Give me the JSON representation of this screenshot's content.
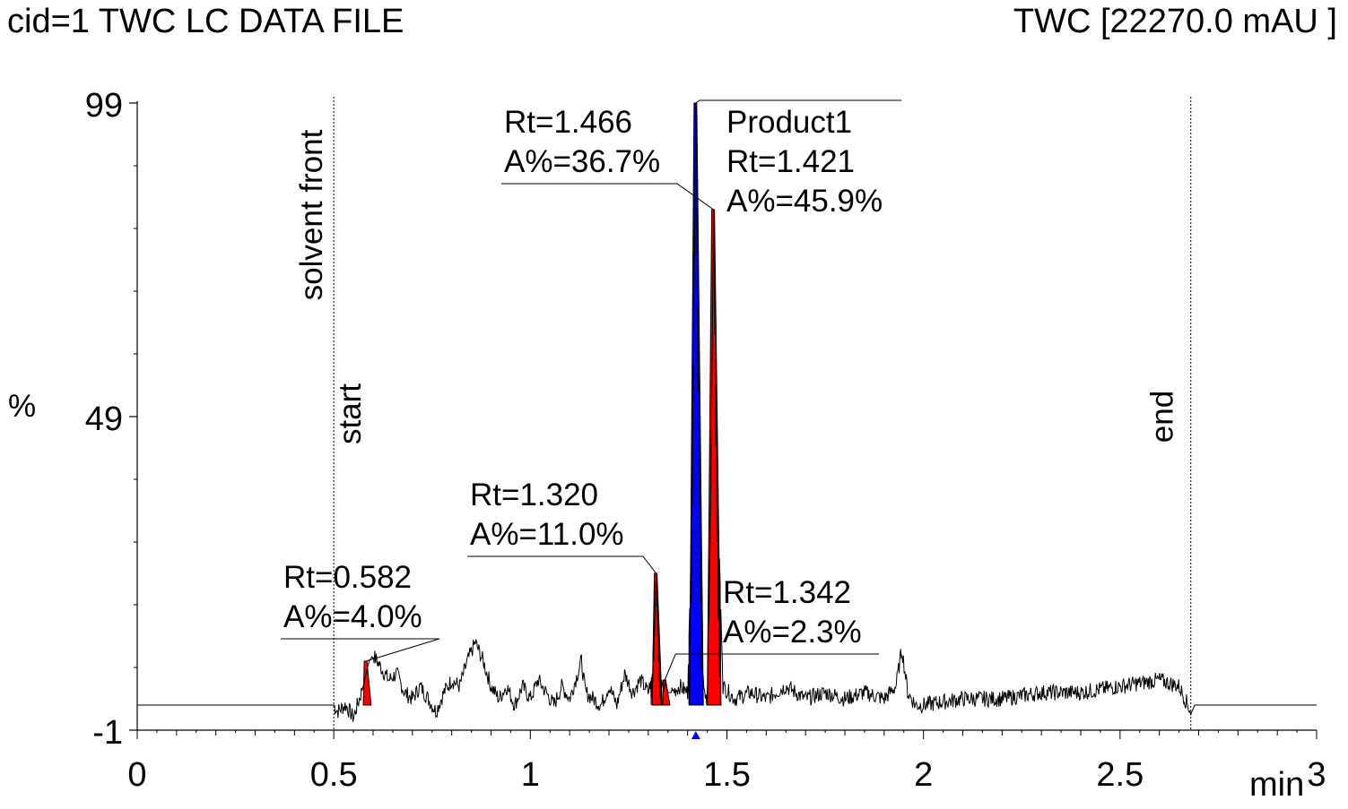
{
  "header": {
    "title_left": "cid=1 TWC LC DATA FILE",
    "title_right": "TWC [22270.0 mAU ]"
  },
  "chart_data": {
    "type": "line",
    "title": "cid=1 TWC LC DATA FILE",
    "detector": "TWC [22270.0 mAU ]",
    "xlabel": "min",
    "ylabel": "%",
    "xlim": [
      0,
      3
    ],
    "ylim": [
      -1,
      99
    ],
    "x_ticks": [
      0,
      0.5,
      1,
      1.5,
      2,
      2.5,
      3
    ],
    "x_tick_labels": [
      "0",
      "0.5",
      "1",
      "1.5",
      "2",
      "2.5",
      "3"
    ],
    "y_ticks": [
      99,
      49,
      -1
    ],
    "y_tick_labels": [
      "99",
      "49",
      "-1"
    ],
    "grid": false,
    "markers": [
      {
        "x": 0.5,
        "label": "solvent front"
      },
      {
        "x": 0.5,
        "label": "start"
      },
      {
        "x": 2.68,
        "label": "end"
      }
    ],
    "selected_rt": 1.421,
    "baseline_level": 3,
    "trace": {
      "x": [
        0,
        0.5,
        0.51,
        0.53,
        0.55,
        0.565,
        0.575,
        0.582,
        0.59,
        0.6,
        0.62,
        0.64,
        0.66,
        0.68,
        0.7,
        0.72,
        0.74,
        0.76,
        0.78,
        0.8,
        0.82,
        0.84,
        0.86,
        0.88,
        0.9,
        0.92,
        0.94,
        0.96,
        0.98,
        1.0,
        1.02,
        1.04,
        1.06,
        1.08,
        1.1,
        1.12,
        1.13,
        1.14,
        1.16,
        1.18,
        1.2,
        1.22,
        1.24,
        1.26,
        1.28,
        1.3,
        1.31,
        1.32,
        1.33,
        1.34,
        1.342,
        1.35,
        1.36,
        1.38,
        1.4,
        1.41,
        1.421,
        1.43,
        1.44,
        1.45,
        1.46,
        1.466,
        1.475,
        1.49,
        1.52,
        1.56,
        1.6,
        1.65,
        1.7,
        1.75,
        1.8,
        1.85,
        1.9,
        1.93,
        1.945,
        1.96,
        1.98,
        2.0,
        2.1,
        2.2,
        2.3,
        2.4,
        2.5,
        2.6,
        2.65,
        2.68,
        2.69,
        3.0
      ],
      "y": [
        3,
        3,
        2,
        3,
        1,
        4,
        6,
        8,
        10,
        11,
        9,
        7,
        8,
        5,
        4,
        6,
        4,
        2,
        5,
        7,
        6,
        10,
        13,
        10,
        6,
        4,
        6,
        3,
        6,
        4,
        7,
        5,
        3,
        6,
        4,
        8,
        10,
        5,
        4,
        3,
        6,
        3,
        8,
        5,
        7,
        5,
        8,
        24,
        8,
        5,
        7,
        5,
        5,
        6,
        5,
        30,
        99,
        50,
        6,
        4,
        40,
        82,
        40,
        6,
        4,
        5,
        4,
        6,
        4,
        5,
        4,
        5,
        4,
        6,
        12,
        5,
        3,
        3,
        4,
        4,
        5,
        5,
        6,
        7,
        6,
        2,
        3,
        3
      ]
    },
    "peaks": [
      {
        "rt": 0.582,
        "area_pct": 4.0,
        "label_lines": [
          "Rt=0.582",
          "A%=4.0%"
        ],
        "color": "#ff0000",
        "x_start": 0.575,
        "x_end": 0.595,
        "height": 10
      },
      {
        "rt": 1.32,
        "area_pct": 11.0,
        "label_lines": [
          "Rt=1.320",
          "A%=11.0%"
        ],
        "color": "#ff0000",
        "x_start": 1.31,
        "x_end": 1.335,
        "height": 24
      },
      {
        "rt": 1.342,
        "area_pct": 2.3,
        "label_lines": [
          "Rt=1.342",
          "A%=2.3%"
        ],
        "color": "#ff0000",
        "x_start": 1.337,
        "x_end": 1.355,
        "height": 7
      },
      {
        "rt": 1.421,
        "area_pct": 45.9,
        "name": "Product1",
        "label_lines": [
          "Product1",
          "Rt=1.421",
          "A%=45.9%"
        ],
        "color": "#0000ff",
        "x_start": 1.405,
        "x_end": 1.44,
        "height": 99
      },
      {
        "rt": 1.466,
        "area_pct": 36.7,
        "label_lines": [
          "Rt=1.466",
          "A%=36.7%"
        ],
        "color": "#ff0000",
        "x_start": 1.45,
        "x_end": 1.485,
        "height": 82
      }
    ]
  }
}
